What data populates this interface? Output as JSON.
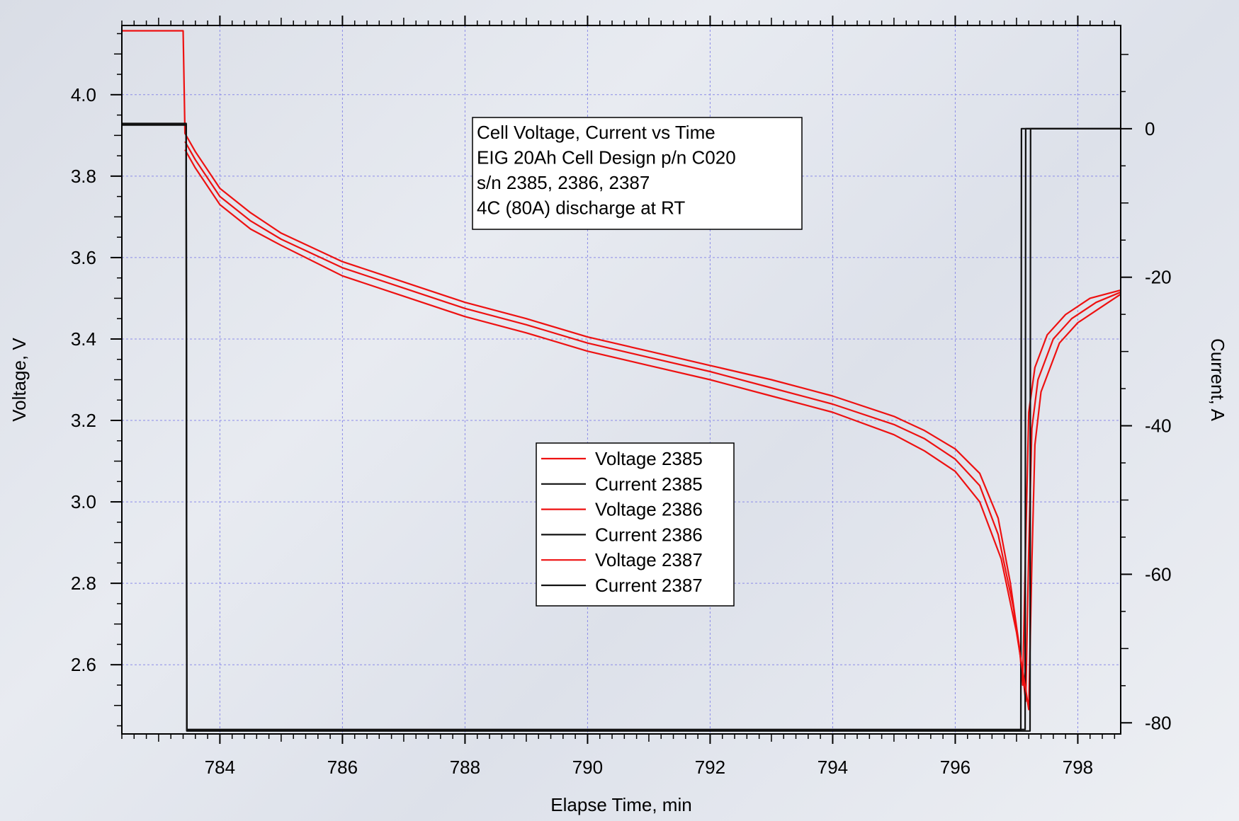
{
  "chart_data": {
    "type": "line",
    "xlabel": "Elapse Time, min",
    "ylabel": "Voltage, V",
    "y2label": "Current, A",
    "xlim": [
      782.4,
      798.7
    ],
    "ylim": [
      2.43,
      4.17
    ],
    "y2lim": [
      -81.5,
      13.9
    ],
    "x_ticks": [
      784,
      786,
      788,
      790,
      792,
      794,
      796,
      798
    ],
    "y_ticks": [
      2.6,
      2.8,
      3.0,
      3.2,
      3.4,
      3.6,
      3.8,
      4.0
    ],
    "y_tick_labels": [
      "2.6",
      "2.8",
      "3.0",
      "3.2",
      "3.4",
      "3.6",
      "3.8",
      "4.0"
    ],
    "y2_ticks": [
      0,
      -20,
      -40,
      -60,
      -80
    ],
    "grid": true,
    "legend_position": "center-bottom",
    "annotation": [
      "Cell Voltage, Current vs Time",
      "EIG 20Ah Cell Design p/n C020",
      "s/n 2385, 2386, 2387",
      "4C (80A) discharge at RT"
    ],
    "series": [
      {
        "name": "Voltage 2385",
        "axis": "left",
        "color": "#ee1111",
        "points": [
          [
            782.4,
            4.157
          ],
          [
            783.4,
            4.157
          ],
          [
            783.43,
            3.905
          ],
          [
            783.6,
            3.86
          ],
          [
            784.0,
            3.77
          ],
          [
            784.5,
            3.71
          ],
          [
            785.0,
            3.66
          ],
          [
            786.0,
            3.59
          ],
          [
            787.0,
            3.54
          ],
          [
            788.0,
            3.49
          ],
          [
            789.0,
            3.45
          ],
          [
            790.0,
            3.405
          ],
          [
            791.0,
            3.37
          ],
          [
            792.0,
            3.335
          ],
          [
            793.0,
            3.3
          ],
          [
            794.0,
            3.26
          ],
          [
            795.0,
            3.21
          ],
          [
            795.5,
            3.175
          ],
          [
            796.0,
            3.13
          ],
          [
            796.4,
            3.07
          ],
          [
            796.7,
            2.96
          ],
          [
            796.9,
            2.8
          ],
          [
            797.05,
            2.64
          ],
          [
            797.1,
            2.55
          ],
          [
            797.15,
            2.9
          ],
          [
            797.2,
            3.22
          ],
          [
            797.3,
            3.33
          ],
          [
            797.5,
            3.41
          ],
          [
            797.8,
            3.46
          ],
          [
            798.2,
            3.5
          ],
          [
            798.7,
            3.52
          ]
        ]
      },
      {
        "name": "Current 2385",
        "axis": "right",
        "color": "#111111",
        "points": [
          [
            782.4,
            0.7
          ],
          [
            783.45,
            0.7
          ],
          [
            783.46,
            -81.0
          ],
          [
            797.07,
            -81.0
          ],
          [
            797.08,
            0.0
          ],
          [
            798.7,
            0.0
          ]
        ]
      },
      {
        "name": "Voltage 2386",
        "axis": "left",
        "color": "#ee1111",
        "points": [
          [
            783.43,
            3.885
          ],
          [
            783.6,
            3.84
          ],
          [
            784.0,
            3.75
          ],
          [
            784.5,
            3.69
          ],
          [
            785.0,
            3.645
          ],
          [
            786.0,
            3.575
          ],
          [
            787.0,
            3.525
          ],
          [
            788.0,
            3.475
          ],
          [
            789.0,
            3.435
          ],
          [
            790.0,
            3.39
          ],
          [
            791.0,
            3.355
          ],
          [
            792.0,
            3.32
          ],
          [
            793.0,
            3.28
          ],
          [
            794.0,
            3.24
          ],
          [
            795.0,
            3.19
          ],
          [
            795.5,
            3.155
          ],
          [
            796.0,
            3.105
          ],
          [
            796.4,
            3.04
          ],
          [
            796.7,
            2.92
          ],
          [
            796.95,
            2.74
          ],
          [
            797.1,
            2.58
          ],
          [
            797.15,
            2.51
          ],
          [
            797.2,
            2.88
          ],
          [
            797.25,
            3.18
          ],
          [
            797.35,
            3.3
          ],
          [
            797.6,
            3.4
          ],
          [
            797.9,
            3.45
          ],
          [
            798.3,
            3.49
          ],
          [
            798.7,
            3.515
          ]
        ]
      },
      {
        "name": "Current 2386",
        "axis": "right",
        "color": "#111111",
        "points": [
          [
            782.4,
            0.5
          ],
          [
            783.45,
            0.5
          ],
          [
            783.46,
            -80.9
          ],
          [
            797.14,
            -80.9
          ],
          [
            797.15,
            0.0
          ],
          [
            798.7,
            0.0
          ]
        ]
      },
      {
        "name": "Voltage 2387",
        "axis": "left",
        "color": "#ee1111",
        "points": [
          [
            783.43,
            3.865
          ],
          [
            783.6,
            3.82
          ],
          [
            784.0,
            3.73
          ],
          [
            784.5,
            3.67
          ],
          [
            785.0,
            3.63
          ],
          [
            786.0,
            3.555
          ],
          [
            787.0,
            3.505
          ],
          [
            788.0,
            3.455
          ],
          [
            789.0,
            3.415
          ],
          [
            790.0,
            3.37
          ],
          [
            791.0,
            3.335
          ],
          [
            792.0,
            3.3
          ],
          [
            793.0,
            3.26
          ],
          [
            794.0,
            3.22
          ],
          [
            795.0,
            3.165
          ],
          [
            795.5,
            3.125
          ],
          [
            796.0,
            3.075
          ],
          [
            796.4,
            3.0
          ],
          [
            796.75,
            2.86
          ],
          [
            797.0,
            2.68
          ],
          [
            797.15,
            2.54
          ],
          [
            797.2,
            2.49
          ],
          [
            797.25,
            2.85
          ],
          [
            797.3,
            3.14
          ],
          [
            797.4,
            3.27
          ],
          [
            797.7,
            3.39
          ],
          [
            798.0,
            3.44
          ],
          [
            798.4,
            3.48
          ],
          [
            798.7,
            3.51
          ]
        ]
      },
      {
        "name": "Current 2387",
        "axis": "right",
        "color": "#111111",
        "points": [
          [
            782.4,
            0.6
          ],
          [
            783.45,
            0.6
          ],
          [
            783.46,
            -81.1
          ],
          [
            797.22,
            -81.1
          ],
          [
            797.23,
            0.0
          ],
          [
            798.7,
            0.0
          ]
        ]
      }
    ]
  }
}
